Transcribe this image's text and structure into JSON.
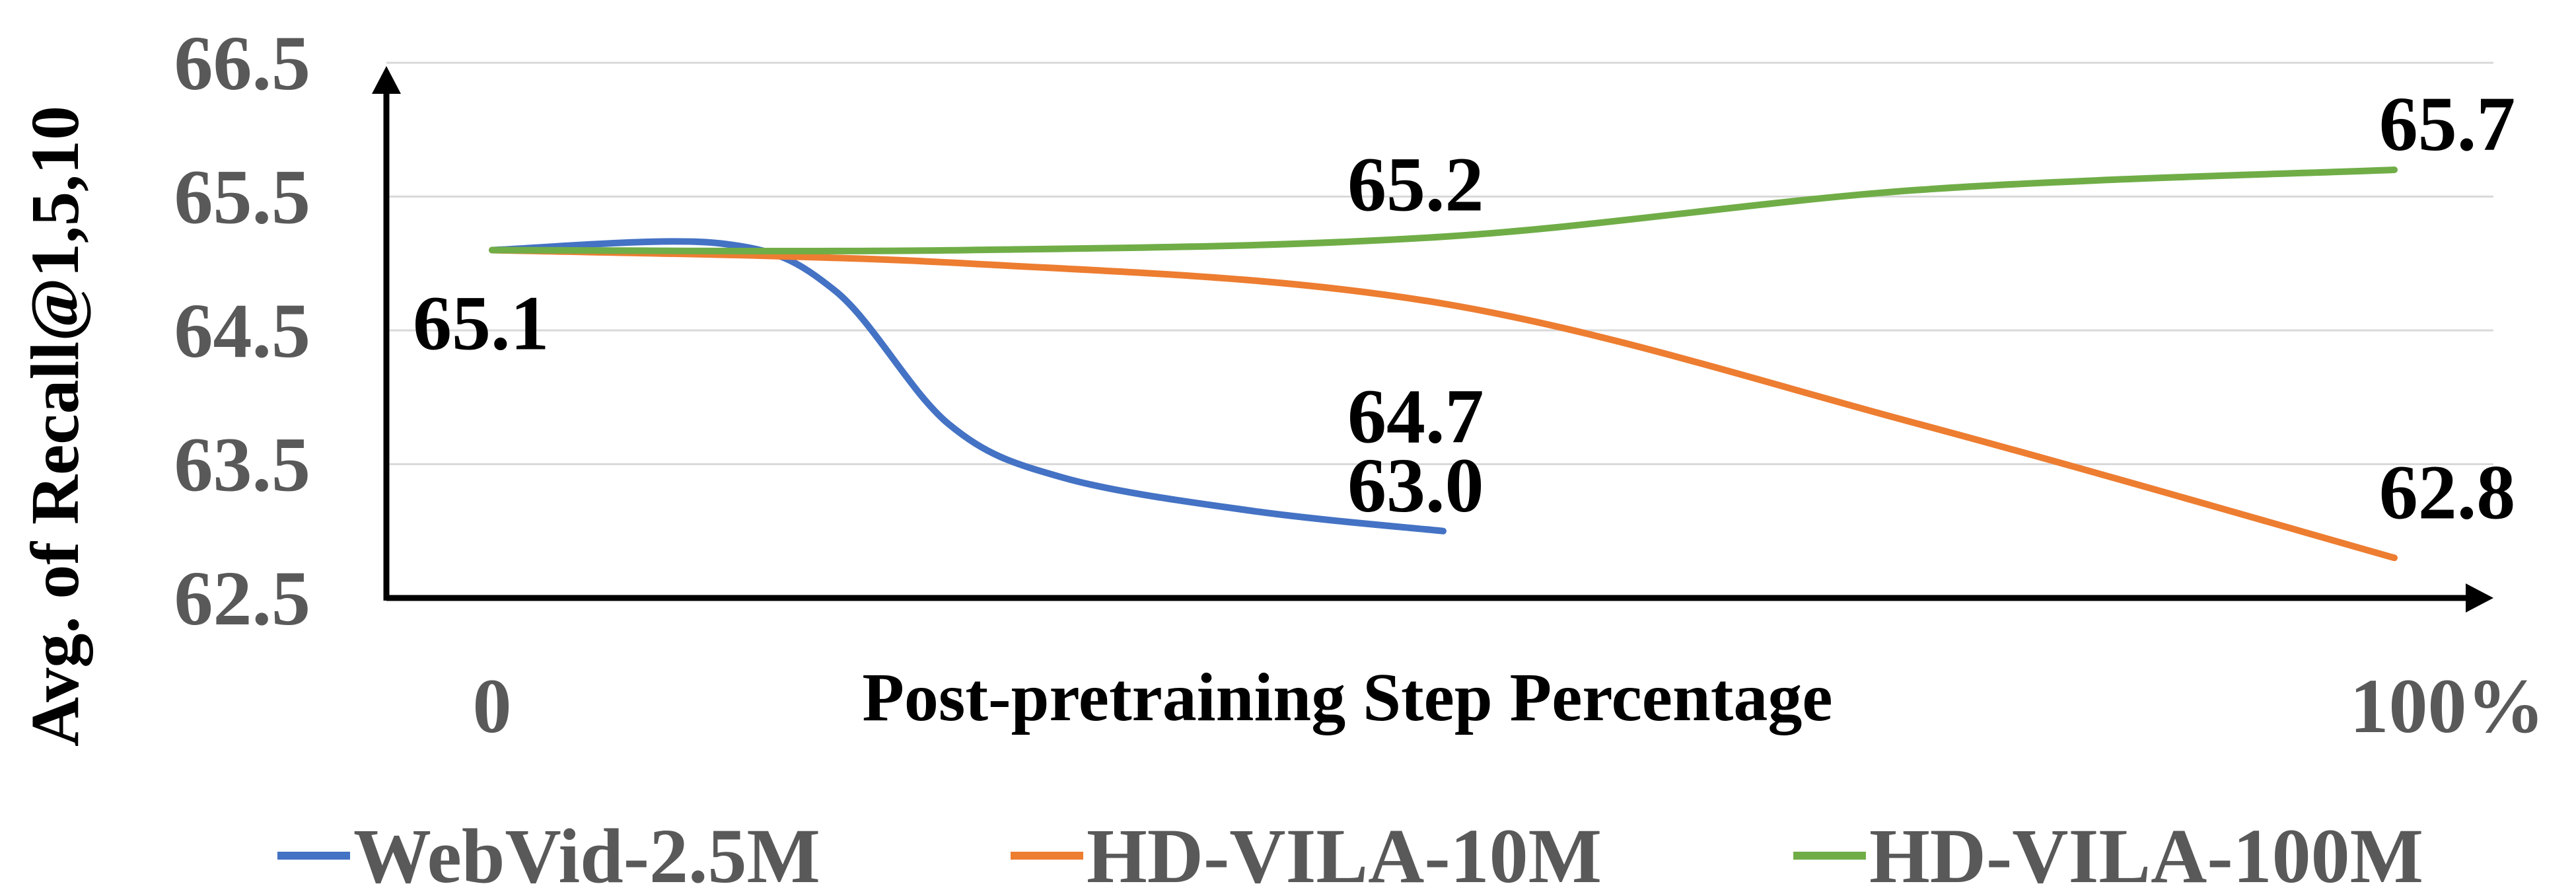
{
  "chart_data": {
    "type": "line",
    "xlabel": "Post-pretraining Step Percentage",
    "ylabel": "Avg. of Recall@1,5,10",
    "x_tick_labels": [
      "0",
      "100%"
    ],
    "xlim": [
      0,
      100
    ],
    "ylim": [
      62.5,
      66.5
    ],
    "y_ticks": [
      62.5,
      63.5,
      64.5,
      65.5,
      66.5
    ],
    "grid": true,
    "legend": "bottom",
    "series": [
      {
        "name": "WebVid-2.5M",
        "color": "#4472C4",
        "points": [
          [
            0,
            65.1
          ],
          [
            12,
            65.15
          ],
          [
            18,
            64.8
          ],
          [
            24,
            63.8
          ],
          [
            30,
            63.4
          ],
          [
            40,
            63.15
          ],
          [
            50,
            63.0
          ]
        ],
        "label_value": "63.0"
      },
      {
        "name": "HD-VILA-10M",
        "color": "#ED7D31",
        "points": [
          [
            0,
            65.1
          ],
          [
            25,
            65.0
          ],
          [
            50,
            64.7
          ],
          [
            75,
            63.8
          ],
          [
            100,
            62.8
          ]
        ],
        "label_value": "64.7",
        "end_label_value": "62.8"
      },
      {
        "name": "HD-VILA-100M",
        "color": "#70AD47",
        "points": [
          [
            0,
            65.1
          ],
          [
            25,
            65.1
          ],
          [
            50,
            65.2
          ],
          [
            75,
            65.55
          ],
          [
            100,
            65.7
          ]
        ],
        "label_value": "65.2",
        "end_label_value": "65.7"
      }
    ],
    "annotations": [
      {
        "text": "65.1",
        "x": 0,
        "y": 65.1
      },
      {
        "text": "65.2",
        "x": 50,
        "y": 65.2
      },
      {
        "text": "64.7",
        "x": 50,
        "y": 64.7
      },
      {
        "text": "63.0",
        "x": 50,
        "y": 63.0
      },
      {
        "text": "65.7",
        "x": 100,
        "y": 65.7
      },
      {
        "text": "62.8",
        "x": 100,
        "y": 62.8
      }
    ]
  }
}
